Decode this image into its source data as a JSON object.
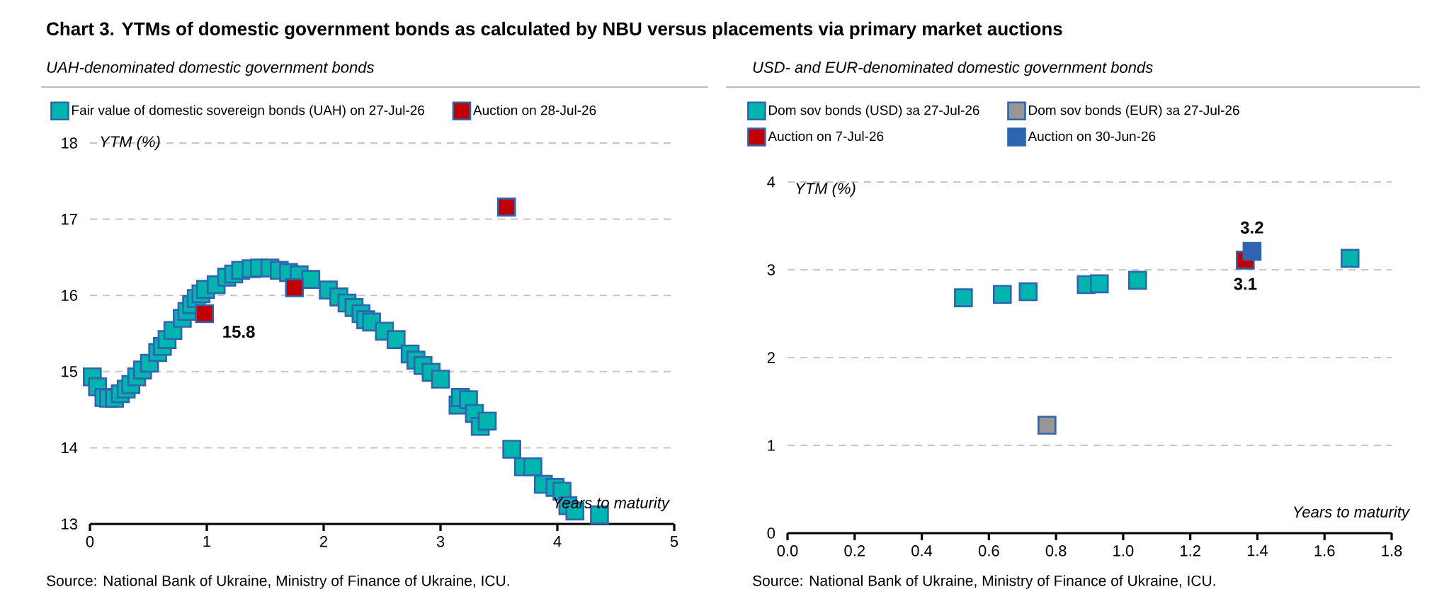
{
  "chart_data": [
    {
      "type": "scatter",
      "title": "Chart 3. YTMs of domestic government bonds as calculated by NBU versus placements via primary market auctions",
      "subtitle": "UAH-denominated domestic government bonds",
      "xlabel": "Years to maturity",
      "ylabel": "YTM (%)",
      "xlim": [
        0,
        5
      ],
      "ylim": [
        13,
        18
      ],
      "xticks": [
        0,
        1,
        2,
        3,
        4,
        5
      ],
      "yticks": [
        13,
        14,
        15,
        16,
        17,
        18
      ],
      "grid": "y",
      "legend": "top",
      "marker": "square",
      "series": [
        {
          "name": "Fair value of domestic sovereign bonds (UAH) on 27-Jul-26",
          "color": "#00b5ad",
          "x": [
            0.02,
            0.065,
            0.12,
            0.16,
            0.21,
            0.26,
            0.31,
            0.35,
            0.4,
            0.45,
            0.51,
            0.58,
            0.62,
            0.66,
            0.71,
            0.79,
            0.83,
            0.87,
            0.91,
            0.95,
            0.99,
            1.08,
            1.17,
            1.23,
            1.29,
            1.38,
            1.45,
            1.54,
            1.62,
            1.7,
            1.79,
            1.89,
            2.04,
            2.13,
            2.2,
            2.26,
            2.32,
            2.36,
            2.41,
            2.52,
            2.62,
            2.74,
            2.79,
            2.85,
            2.92,
            3.0,
            3.15,
            3.17,
            3.24,
            3.29,
            3.34,
            3.4,
            3.61,
            3.71,
            3.79,
            3.88,
            3.98,
            4.04,
            4.09,
            4.15,
            4.36
          ],
          "values": [
            14.93,
            14.8,
            14.66,
            14.65,
            14.65,
            14.71,
            14.77,
            14.83,
            14.93,
            15.02,
            15.11,
            15.25,
            15.33,
            15.42,
            15.54,
            15.7,
            15.79,
            15.88,
            15.96,
            16.02,
            16.08,
            16.14,
            16.24,
            16.28,
            16.33,
            16.35,
            16.36,
            16.36,
            16.33,
            16.3,
            16.27,
            16.21,
            16.07,
            15.98,
            15.9,
            15.84,
            15.76,
            15.68,
            15.65,
            15.53,
            15.42,
            15.23,
            15.15,
            15.08,
            14.99,
            14.9,
            14.56,
            14.66,
            14.63,
            14.45,
            14.28,
            14.35,
            13.98,
            13.75,
            13.75,
            13.52,
            13.48,
            13.43,
            13.24,
            13.17,
            13.12
          ]
        },
        {
          "name": "Auction on 28-Jul-26",
          "color": "#c00000",
          "x": [
            0.98,
            1.75,
            3.565
          ],
          "values": [
            15.76,
            16.1,
            17.16
          ],
          "value_labels": [
            "15.8",
            null,
            null
          ]
        }
      ],
      "annotations": [
        "Source: National Bank of Ukraine, Ministry of Finance of Ukraine, ICU."
      ]
    },
    {
      "type": "scatter",
      "subtitle": "USD- and EUR-denominated domestic government bonds",
      "xlabel": "Years to maturity",
      "ylabel": "YTM (%)",
      "xlim": [
        0,
        1.8
      ],
      "ylim": [
        0,
        4
      ],
      "xticks": [
        {
          "value": 0,
          "label": "0.0"
        },
        0.2,
        0.4,
        0.6,
        0.8,
        {
          "value": 1,
          "label": "1.0"
        },
        1.2,
        1.4,
        1.6,
        1.8
      ],
      "yticks": [
        0,
        1,
        2,
        3,
        4
      ],
      "grid": "y",
      "legend": "top",
      "marker": "square",
      "series": [
        {
          "name": "Dom sov bonds (USD) за 27-Jul-26",
          "color": "#00b5ad",
          "x": [
            0.524,
            0.64,
            0.717,
            0.89,
            0.929,
            1.043,
            1.676
          ],
          "values": [
            2.68,
            2.72,
            2.75,
            2.83,
            2.84,
            2.88,
            3.13
          ]
        },
        {
          "name": "Dom sov bonds (EUR) за 27-Jul-26",
          "color": "#969696",
          "x": [
            0.773
          ],
          "values": [
            1.23
          ]
        },
        {
          "name": "Auction on 7-Jul-26",
          "color": "#c00000",
          "x": [
            1.364
          ],
          "values": [
            3.11
          ],
          "value_labels": [
            "3.1"
          ]
        },
        {
          "name": "Auction on 30-Jun-26",
          "color": "#2e64b0",
          "x": [
            1.384
          ],
          "values": [
            3.21
          ],
          "value_labels": [
            "3.2"
          ]
        }
      ],
      "annotations": [
        "Source: National Bank of Ukraine, Ministry of Finance of Ukraine, ICU."
      ]
    }
  ]
}
